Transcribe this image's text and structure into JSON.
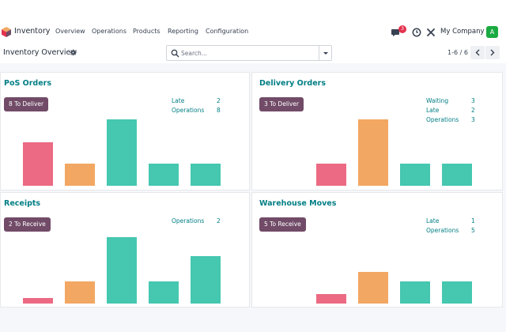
{
  "topbar": {
    "app_name": "Inventory",
    "menu": [
      "Overview",
      "Operations",
      "Products",
      "Reporting",
      "Configuration"
    ],
    "chat_count": "3",
    "company": "My Company",
    "avatar_letter": "A"
  },
  "control_panel": {
    "title": "Inventory Overview",
    "search_placeholder": "Search...",
    "pager": "1-6 / 6"
  },
  "colors": {
    "accent": "#017e84",
    "primary_button": "#714b67",
    "bar_red": "#ec6a83",
    "bar_orange": "#f2a763",
    "bar_teal": "#45c7b0"
  },
  "cards": [
    {
      "title": "PoS Orders",
      "action": "8 To Deliver",
      "stats": [
        {
          "label": "Late",
          "value": "2"
        },
        {
          "label": "Operations",
          "value": "8"
        }
      ],
      "bars": [
        {
          "color": "red",
          "value": 0.66
        },
        {
          "color": "orange",
          "value": 0.33
        },
        {
          "color": "teal",
          "value": 1.0
        },
        {
          "color": "teal",
          "value": 0.33
        },
        {
          "color": "teal",
          "value": 0.33
        }
      ]
    },
    {
      "title": "Delivery Orders",
      "action": "3 To Deliver",
      "stats": [
        {
          "label": "Waiting",
          "value": "3"
        },
        {
          "label": "Late",
          "value": "2"
        },
        {
          "label": "Operations",
          "value": "3"
        }
      ],
      "bars": [
        {
          "color": "none",
          "value": 0
        },
        {
          "color": "red",
          "value": 0.33
        },
        {
          "color": "orange",
          "value": 1.0
        },
        {
          "color": "teal",
          "value": 0.33
        },
        {
          "color": "teal",
          "value": 0.33
        }
      ]
    },
    {
      "title": "Receipts",
      "action": "2 To Receive",
      "stats": [
        {
          "label": "Operations",
          "value": "2"
        }
      ],
      "bars": [
        {
          "color": "red",
          "value": 0.08
        },
        {
          "color": "orange",
          "value": 0.33
        },
        {
          "color": "teal",
          "value": 1.0
        },
        {
          "color": "teal",
          "value": 0.33
        },
        {
          "color": "teal",
          "value": 0.72
        }
      ]
    },
    {
      "title": "Warehouse Moves",
      "action": "5 To Receive",
      "stats": [
        {
          "label": "Late",
          "value": "1"
        },
        {
          "label": "Operations",
          "value": "5"
        }
      ],
      "bars": [
        {
          "color": "none",
          "value": 0
        },
        {
          "color": "red",
          "value": 0.14
        },
        {
          "color": "orange",
          "value": 0.48
        },
        {
          "color": "teal",
          "value": 0.33
        },
        {
          "color": "teal",
          "value": 0.33
        }
      ]
    }
  ]
}
